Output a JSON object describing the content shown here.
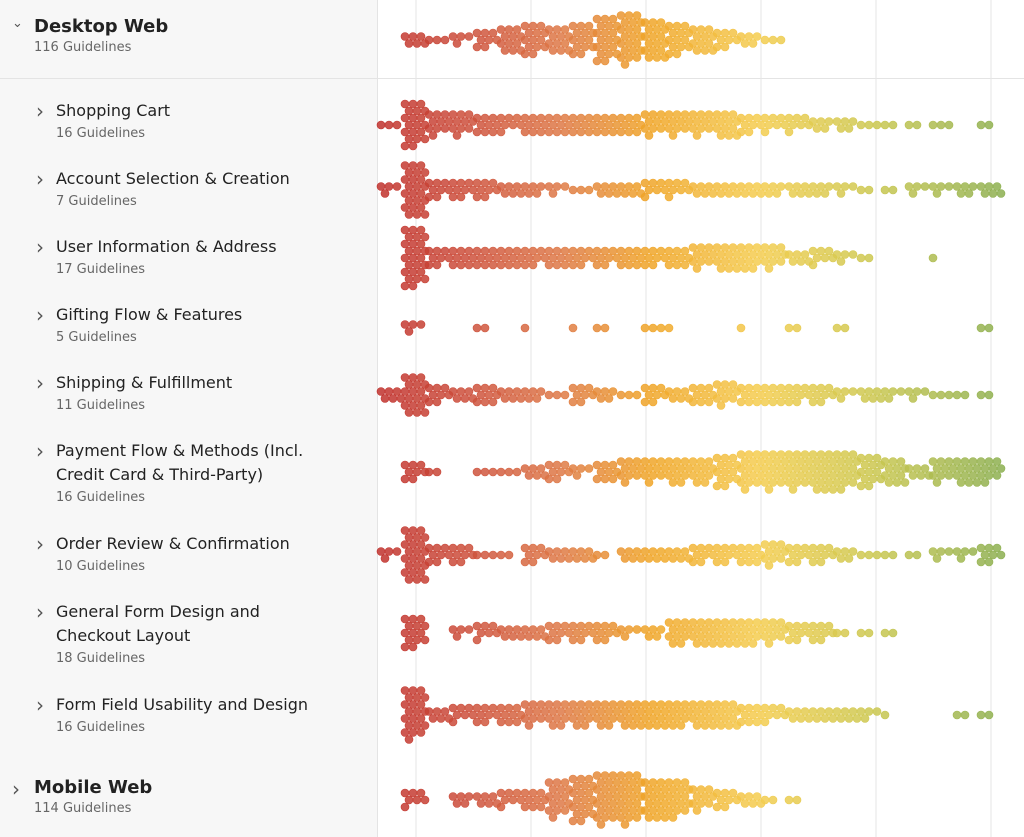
{
  "groups": [
    {
      "title": "Desktop Web",
      "subtitle": "116 Guidelines",
      "counts": [
        0,
        6,
        3,
        4,
        8,
        12,
        14,
        12,
        14,
        20,
        22,
        18,
        14,
        12,
        8,
        5,
        3,
        0,
        0,
        0,
        0,
        0,
        0,
        0,
        0,
        0
      ],
      "children": [
        {
          "title": "Shopping Cart",
          "subtitle": "16 Guidelines",
          "counts": [
            3,
            20,
            10,
            10,
            9,
            7,
            9,
            9,
            9,
            9,
            9,
            10,
            10,
            10,
            12,
            8,
            7,
            7,
            5,
            5,
            3,
            2,
            2,
            3,
            0,
            2
          ]
        },
        {
          "title": "Account Selection & Creation",
          "subtitle": "7 Guidelines",
          "counts": [
            4,
            24,
            8,
            8,
            8,
            6,
            5,
            4,
            3,
            6,
            6,
            7,
            7,
            6,
            6,
            6,
            5,
            6,
            5,
            4,
            2,
            2,
            4,
            4,
            5,
            6
          ]
        },
        {
          "title": "User Information & Address",
          "subtitle": "17 Guidelines",
          "counts": [
            0,
            26,
            8,
            9,
            9,
            9,
            8,
            9,
            8,
            8,
            9,
            8,
            9,
            10,
            12,
            11,
            10,
            6,
            7,
            4,
            2,
            0,
            0,
            1,
            0,
            0
          ]
        },
        {
          "title": "Gifting Flow & Features",
          "subtitle": "5 Guidelines",
          "counts": [
            0,
            4,
            0,
            0,
            2,
            0,
            1,
            0,
            1,
            2,
            0,
            3,
            1,
            0,
            0,
            1,
            0,
            2,
            0,
            2,
            0,
            0,
            0,
            0,
            0,
            2
          ]
        },
        {
          "title": "Shipping & Fulfillment",
          "subtitle": "11 Guidelines",
          "counts": [
            6,
            18,
            8,
            6,
            9,
            6,
            5,
            3,
            8,
            5,
            3,
            8,
            6,
            9,
            10,
            9,
            9,
            8,
            8,
            4,
            6,
            4,
            4,
            3,
            2,
            2
          ]
        },
        {
          "title": "Payment Flow & Methods (Incl. Credit Card & Third-Party)",
          "subtitle": "16 Guidelines",
          "counts": [
            0,
            8,
            2,
            0,
            3,
            3,
            6,
            8,
            4,
            9,
            10,
            10,
            11,
            11,
            14,
            16,
            16,
            16,
            18,
            16,
            14,
            12,
            6,
            10,
            12,
            10
          ]
        },
        {
          "title": "Order Review & Confirmation",
          "subtitle": "10 Guidelines",
          "counts": [
            4,
            24,
            8,
            8,
            3,
            2,
            8,
            6,
            6,
            2,
            6,
            6,
            6,
            8,
            8,
            9,
            10,
            8,
            8,
            5,
            3,
            2,
            2,
            4,
            4,
            8
          ]
        },
        {
          "title": "General Form Design and Checkout Layout",
          "subtitle": "18 Guidelines",
          "counts": [
            0,
            14,
            0,
            4,
            7,
            6,
            6,
            8,
            8,
            8,
            4,
            5,
            11,
            12,
            12,
            11,
            10,
            8,
            8,
            2,
            2,
            2,
            0,
            0,
            0,
            0
          ]
        },
        {
          "title": "Form Field Usability and Design",
          "subtitle": "16 Guidelines",
          "counts": [
            0,
            22,
            6,
            7,
            8,
            9,
            10,
            11,
            11,
            11,
            12,
            12,
            11,
            12,
            12,
            9,
            7,
            6,
            6,
            6,
            4,
            1,
            0,
            0,
            2,
            2
          ]
        }
      ]
    },
    {
      "title": "Mobile Web",
      "subtitle": "114 Guidelines",
      "counts": [
        0,
        7,
        0,
        5,
        6,
        7,
        9,
        16,
        20,
        22,
        22,
        18,
        16,
        10,
        8,
        6,
        2,
        2,
        0,
        0,
        0,
        0,
        0,
        0,
        0,
        0
      ]
    }
  ]
}
